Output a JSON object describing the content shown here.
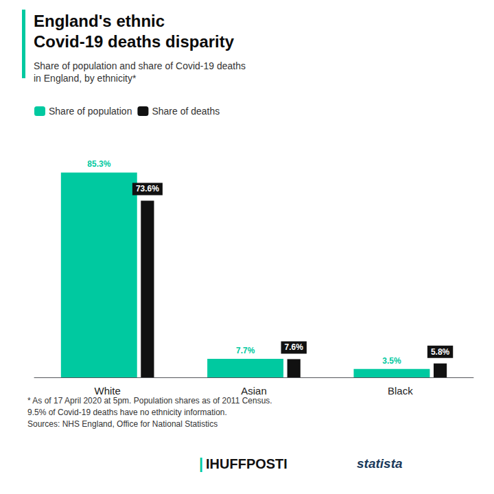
{
  "chart_data": {
    "type": "bar",
    "title": "England's ethnic\nCovid-19 deaths disparity",
    "subtitle": "Share of population and share of Covid-19 deaths\nin England, by ethnicity*",
    "categories": [
      "White",
      "Asian",
      "Black"
    ],
    "series": [
      {
        "name": "Share of population",
        "color": "#00C9A0",
        "values": [
          85.3,
          7.7,
          3.5
        ],
        "value_labels": [
          "85.3%",
          "7.7%",
          "3.5%"
        ]
      },
      {
        "name": "Share of deaths",
        "color": "#111111",
        "values": [
          73.6,
          7.6,
          5.8
        ],
        "value_labels": [
          "73.6%",
          "7.6%",
          "5.8%"
        ]
      }
    ],
    "ylim": [
      0,
      100
    ],
    "grid": false,
    "legend": "upper left",
    "data_labels": true,
    "tick_labels": "x",
    "annotations": [
      "* As of 17 April 2020 at 5pm. Population shares as of 2011 Census.",
      "9.5% of Covid-19 deaths have no ethnicity information.",
      "Sources: NHS England, Office for National Statistics",
      "IHUFFPOSTI",
      "|",
      "statista"
    ]
  }
}
